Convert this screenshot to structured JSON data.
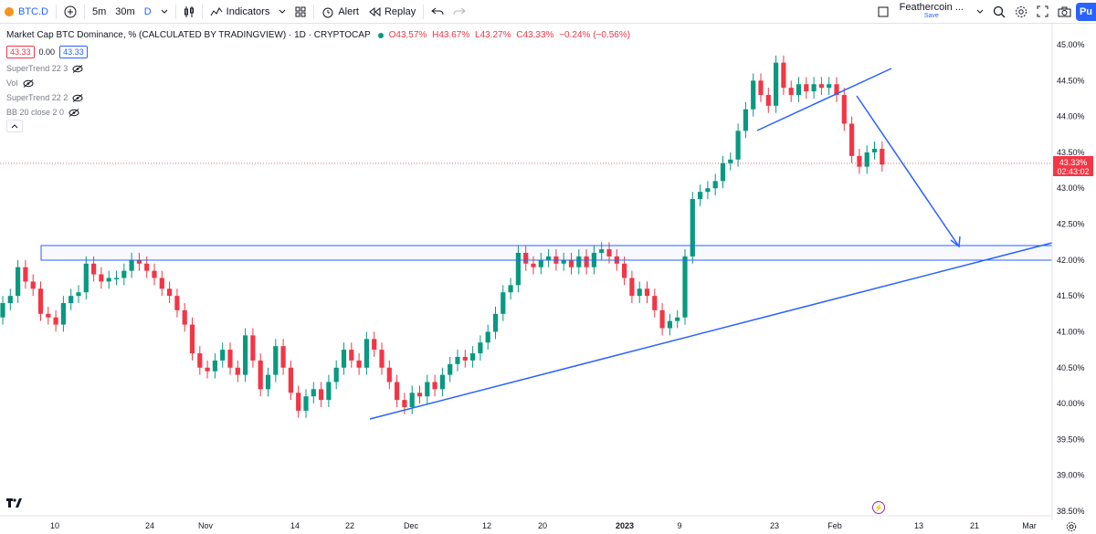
{
  "toolbar": {
    "symbol": "BTC.D",
    "intervals": [
      "5m",
      "30m",
      "D"
    ],
    "indicators_label": "Indicators",
    "alert_label": "Alert",
    "replay_label": "Replay",
    "layout_name": "Feathercoin ...",
    "save_label": "Save",
    "publish_label": "Pu"
  },
  "legend": {
    "title": "Market Cap BTC Dominance, % (CALCULATED BY TRADINGVIEW) · 1D · CRYPTOCAP",
    "open": "O43.57%",
    "high": "H43.67%",
    "low": "L43.27%",
    "close": "C43.33%",
    "change": "−0.24% (−0.56%)",
    "price_box_left": "43.33",
    "price_mid": "0.00",
    "price_box_right": "43.33"
  },
  "indicators": [
    "SuperTrend 22 3",
    "Vol",
    "SuperTrend 22 2",
    "BB 20 close 2 0"
  ],
  "price_label": {
    "value": "43.33%",
    "countdown": "02:43:02"
  },
  "chart_data": {
    "type": "candlestick",
    "symbol": "BTC.D",
    "y_ticks": [
      "45.00%",
      "44.50%",
      "44.00%",
      "43.50%",
      "43.00%",
      "42.50%",
      "42.00%",
      "41.50%",
      "41.00%",
      "40.50%",
      "40.00%",
      "39.50%",
      "39.00%",
      "38.50%"
    ],
    "x_ticks": [
      "10",
      "24",
      "Nov",
      "14",
      "22",
      "Dec",
      "12",
      "20",
      "2023",
      "9",
      "23",
      "Feb",
      "13",
      "21",
      "Mar"
    ],
    "ylim": [
      38.5,
      45.0
    ],
    "candles": [
      [
        41.2,
        41.4
      ],
      [
        41.4,
        41.5
      ],
      [
        41.5,
        41.9
      ],
      [
        41.9,
        41.7
      ],
      [
        41.7,
        41.6
      ],
      [
        41.6,
        41.25
      ],
      [
        41.25,
        41.2
      ],
      [
        41.2,
        41.1
      ],
      [
        41.1,
        41.4
      ],
      [
        41.4,
        41.5
      ],
      [
        41.5,
        41.55
      ],
      [
        41.55,
        41.95
      ],
      [
        41.95,
        41.8
      ],
      [
        41.8,
        41.7
      ],
      [
        41.7,
        41.75
      ],
      [
        41.75,
        41.75
      ],
      [
        41.75,
        41.85
      ],
      [
        41.85,
        42.0
      ],
      [
        42.0,
        41.95
      ],
      [
        41.95,
        41.85
      ],
      [
        41.85,
        41.75
      ],
      [
        41.75,
        41.6
      ],
      [
        41.6,
        41.5
      ],
      [
        41.5,
        41.3
      ],
      [
        41.3,
        41.1
      ],
      [
        41.1,
        40.7
      ],
      [
        40.7,
        40.5
      ],
      [
        40.5,
        40.45
      ],
      [
        40.45,
        40.6
      ],
      [
        40.6,
        40.75
      ],
      [
        40.75,
        40.5
      ],
      [
        40.5,
        40.4
      ],
      [
        40.4,
        40.95
      ],
      [
        40.95,
        40.6
      ],
      [
        40.6,
        40.2
      ],
      [
        40.2,
        40.4
      ],
      [
        40.4,
        40.8
      ],
      [
        40.8,
        40.5
      ],
      [
        40.5,
        40.15
      ],
      [
        40.15,
        39.9
      ],
      [
        39.9,
        40.1
      ],
      [
        40.1,
        40.2
      ],
      [
        40.2,
        40.05
      ],
      [
        40.05,
        40.3
      ],
      [
        40.3,
        40.5
      ],
      [
        40.5,
        40.75
      ],
      [
        40.75,
        40.6
      ],
      [
        40.6,
        40.5
      ],
      [
        40.5,
        40.9
      ],
      [
        40.9,
        40.75
      ],
      [
        40.75,
        40.5
      ],
      [
        40.5,
        40.3
      ],
      [
        40.3,
        40.05
      ],
      [
        40.05,
        39.95
      ],
      [
        39.95,
        40.15
      ],
      [
        40.15,
        40.1
      ],
      [
        40.1,
        40.3
      ],
      [
        40.3,
        40.2
      ],
      [
        40.2,
        40.4
      ],
      [
        40.4,
        40.55
      ],
      [
        40.55,
        40.65
      ],
      [
        40.65,
        40.6
      ],
      [
        40.6,
        40.7
      ],
      [
        40.7,
        40.85
      ],
      [
        40.85,
        41.0
      ],
      [
        41.0,
        41.25
      ],
      [
        41.25,
        41.55
      ],
      [
        41.55,
        41.65
      ],
      [
        41.65,
        42.1
      ],
      [
        42.1,
        41.95
      ],
      [
        41.95,
        41.9
      ],
      [
        41.9,
        42.0
      ],
      [
        42.0,
        42.05
      ],
      [
        42.05,
        41.95
      ],
      [
        41.95,
        42.0
      ],
      [
        42.0,
        41.9
      ],
      [
        41.9,
        42.05
      ],
      [
        42.05,
        41.9
      ],
      [
        41.9,
        42.1
      ],
      [
        42.1,
        42.15
      ],
      [
        42.15,
        42.05
      ],
      [
        42.05,
        41.95
      ],
      [
        41.95,
        41.75
      ],
      [
        41.75,
        41.5
      ],
      [
        41.5,
        41.6
      ],
      [
        41.6,
        41.5
      ],
      [
        41.5,
        41.3
      ],
      [
        41.3,
        41.05
      ],
      [
        41.05,
        41.15
      ],
      [
        41.15,
        41.2
      ],
      [
        41.2,
        42.05
      ],
      [
        42.05,
        42.85
      ],
      [
        42.85,
        42.95
      ],
      [
        42.95,
        43.0
      ],
      [
        43.0,
        43.1
      ],
      [
        43.1,
        43.35
      ],
      [
        43.35,
        43.4
      ],
      [
        43.4,
        43.8
      ],
      [
        43.8,
        44.1
      ],
      [
        44.1,
        44.5
      ],
      [
        44.5,
        44.3
      ],
      [
        44.3,
        44.15
      ],
      [
        44.15,
        44.75
      ],
      [
        44.75,
        44.4
      ],
      [
        44.4,
        44.3
      ],
      [
        44.3,
        44.45
      ],
      [
        44.45,
        44.35
      ],
      [
        44.35,
        44.45
      ],
      [
        44.45,
        44.4
      ],
      [
        44.4,
        44.45
      ],
      [
        44.45,
        44.3
      ],
      [
        44.3,
        43.9
      ],
      [
        43.9,
        43.45
      ],
      [
        43.45,
        43.3
      ],
      [
        43.3,
        43.5
      ],
      [
        43.5,
        43.55
      ],
      [
        43.55,
        43.33
      ]
    ]
  }
}
